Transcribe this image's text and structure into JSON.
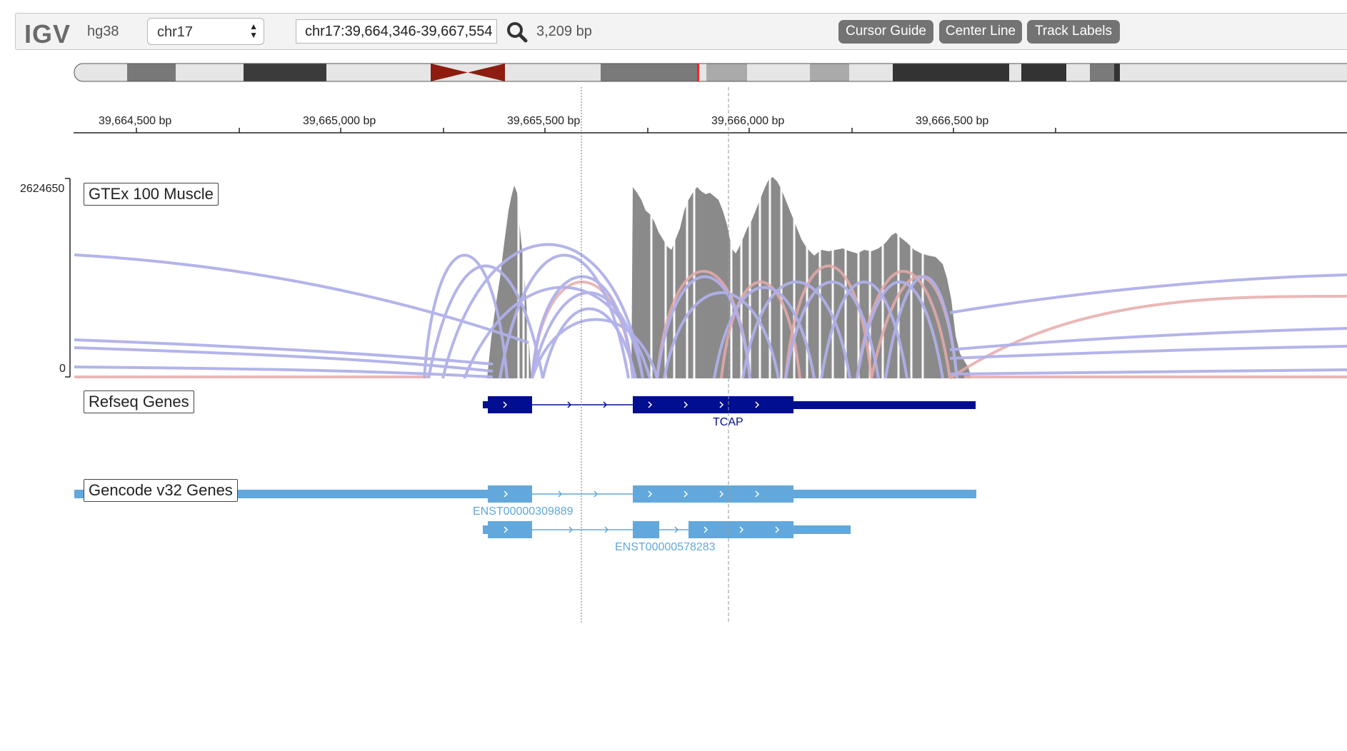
{
  "navbar": {
    "logo": "IGV",
    "genome": "hg38",
    "chromosome": "chr17",
    "locus": "chr17:39,664,346-39,667,554",
    "bp_width": "3,209 bp",
    "buttons": {
      "cursor_guide": "Cursor Guide",
      "center_line": "Center Line",
      "track_labels": "Track Labels"
    }
  },
  "ruler": {
    "ticks": [
      "39,664,500 bp",
      "39,665,000 bp",
      "39,665,500 bp",
      "39,666,000 bp",
      "39,666,500 bp"
    ]
  },
  "tracks": {
    "gtex": {
      "label": "GTEx 100 Muscle",
      "axis_max": "2624650",
      "axis_min": "0"
    },
    "refseq": {
      "label": "Refseq Genes",
      "gene": "TCAP"
    },
    "gencode": {
      "label": "Gencode v32 Genes",
      "transcript1": "ENST00000309889",
      "transcript2": "ENST00000578283"
    }
  },
  "colors": {
    "refseq_gene": "#000e8f",
    "gencode_gene": "#62a8dc",
    "junction_plus": "#b0b0ea",
    "junction_minus": "#e6aaaa",
    "coverage": "#8a8a8a",
    "centromere": "#8e1c10",
    "button": "#737373"
  }
}
